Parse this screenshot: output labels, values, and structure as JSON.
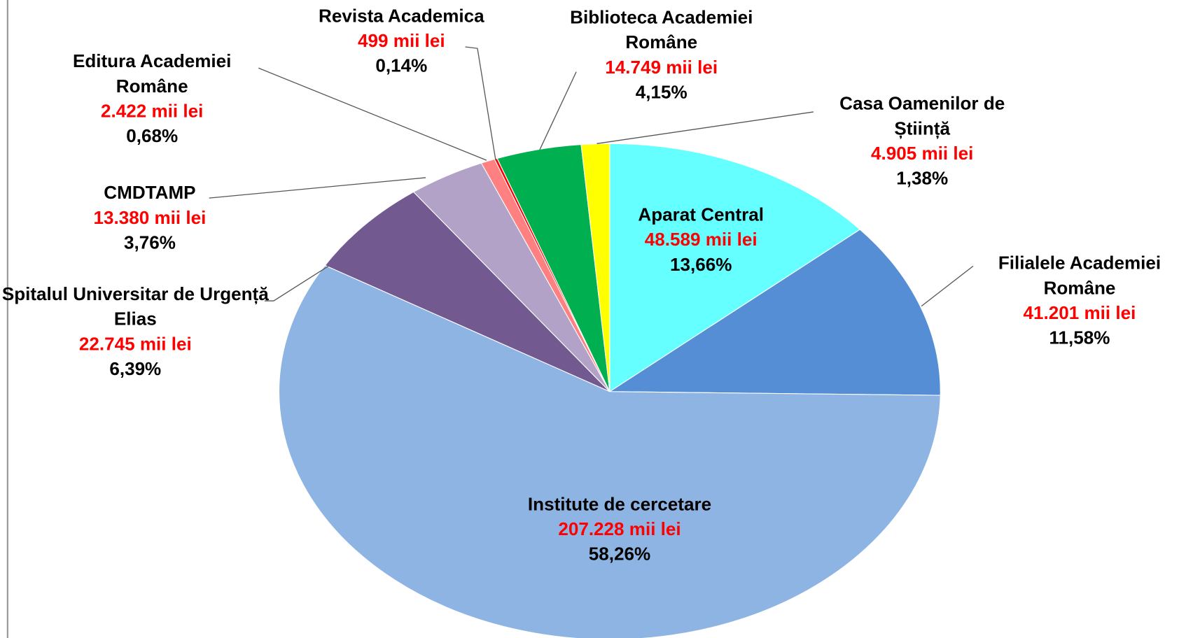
{
  "chart_data": {
    "type": "pie",
    "categories": [
      "Aparat Central",
      "Filialele Academiei Române",
      "Institute de cercetare",
      "Spitalul Universitar de Urgență Elias",
      "CMDTAMP",
      "Editura Academiei Române",
      "Revista Academica",
      "Biblioteca Academiei Române",
      "Casa Oamenilor de Știință"
    ],
    "values": [
      48589,
      41201,
      207228,
      22745,
      13380,
      2422,
      499,
      14749,
      4905
    ],
    "value_labels": [
      "48.589 mii lei",
      "41.201 mii lei",
      "207.228 mii lei",
      "22.745 mii lei",
      "13.380 mii lei",
      "2.422 mii lei",
      "499 mii lei",
      "14.749 mii lei",
      "4.905 mii lei"
    ],
    "shares": [
      13.66,
      11.58,
      58.26,
      6.39,
      3.76,
      0.68,
      0.14,
      4.15,
      1.38
    ],
    "share_labels": [
      "13,66%",
      "11,58%",
      "58,26%",
      "6,39%",
      "3,76%",
      "0,68%",
      "0,14%",
      "4,15%",
      "1,38%"
    ],
    "colors": [
      "#66ffff",
      "#558ed5",
      "#8eb4e3",
      "#725990",
      "#b3a2c7",
      "#ff8080",
      "#ff0000",
      "#00b050",
      "#ffff00"
    ]
  }
}
